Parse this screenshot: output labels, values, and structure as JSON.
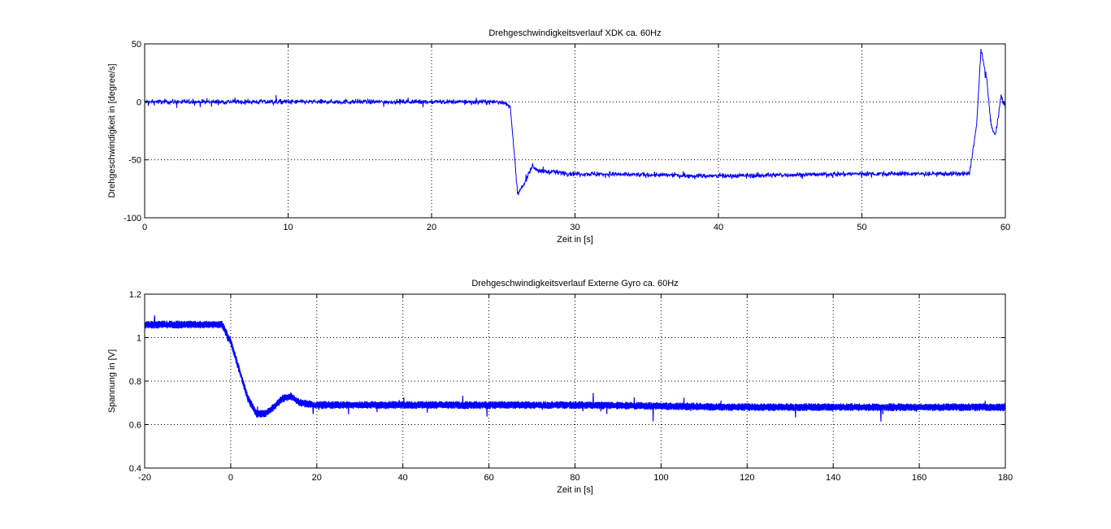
{
  "colors": {
    "line": "#0000ff",
    "background": "#ffffff"
  },
  "chart_data": [
    {
      "type": "line",
      "title": "Drehgeschwindigkeitsverlauf XDK ca. 60Hz",
      "xlabel": "Zeit in [s]",
      "ylabel": "Drehgeschwindigkeit in [degree/s]",
      "xlim": [
        0,
        60
      ],
      "ylim": [
        -100,
        50
      ],
      "xticks": [
        0,
        10,
        20,
        30,
        40,
        50,
        60
      ],
      "yticks": [
        -100,
        -50,
        0,
        50
      ],
      "grid": true,
      "series": [
        {
          "x": [
            0,
            5,
            10,
            15,
            20,
            25,
            25.5,
            26.0,
            26.5,
            27.0,
            27.5,
            28,
            30,
            35,
            40,
            45,
            50,
            55,
            57.5,
            58.0,
            58.3,
            58.7,
            59.0,
            59.3,
            59.7,
            60
          ],
          "values": [
            0,
            0,
            0,
            0,
            0,
            0,
            -5,
            -80,
            -70,
            -55,
            -60,
            -60,
            -62,
            -63,
            -64,
            -63,
            -62,
            -62,
            -62,
            -20,
            45,
            20,
            -20,
            -30,
            5,
            -5
          ]
        }
      ]
    },
    {
      "type": "line",
      "title": "Drehgeschwindigkeitsverlauf Externe Gyro ca. 60Hz",
      "xlabel": "Zeit in [s]",
      "ylabel": "Spannung in [V]",
      "xlim": [
        -20,
        180
      ],
      "ylim": [
        0.4,
        1.2
      ],
      "xticks": [
        -20,
        0,
        20,
        40,
        60,
        80,
        100,
        120,
        140,
        160,
        180
      ],
      "yticks": [
        0.4,
        0.6,
        0.8,
        1,
        1.2
      ],
      "grid": true,
      "series": [
        {
          "x": [
            -20,
            -10,
            -2,
            0,
            2,
            4,
            6,
            8,
            10,
            12,
            14,
            16,
            20,
            40,
            60,
            80,
            100,
            120,
            140,
            160,
            180
          ],
          "values": [
            1.06,
            1.06,
            1.06,
            0.98,
            0.85,
            0.72,
            0.65,
            0.65,
            0.68,
            0.72,
            0.73,
            0.7,
            0.69,
            0.69,
            0.69,
            0.69,
            0.685,
            0.68,
            0.68,
            0.68,
            0.68
          ]
        }
      ]
    }
  ]
}
